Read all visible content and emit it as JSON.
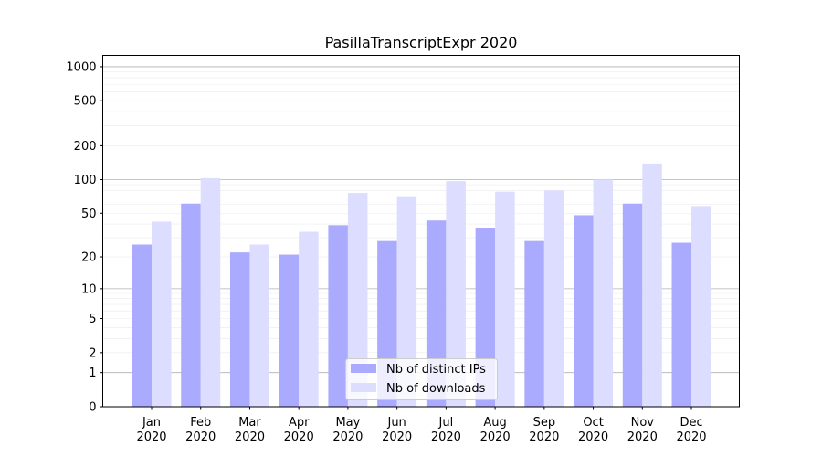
{
  "chart_data": {
    "type": "bar",
    "title": "PasillaTranscriptExpr 2020",
    "xlabel": "",
    "ylabel": "",
    "yscale": "log10(y+1)",
    "ylim": [
      0,
      1350
    ],
    "yticks": [
      0,
      1,
      2,
      5,
      10,
      20,
      50,
      100,
      200,
      500,
      1000
    ],
    "grid": true,
    "legend_position": "lower-center",
    "categories": [
      "Jan\n2020",
      "Feb\n2020",
      "Mar\n2020",
      "Apr\n2020",
      "May\n2020",
      "Jun\n2020",
      "Jul\n2020",
      "Aug\n2020",
      "Sep\n2020",
      "Oct\n2020",
      "Nov\n2020",
      "Dec\n2020"
    ],
    "series": [
      {
        "name": "Nb of distinct IPs",
        "color": "#aaaaff",
        "values": [
          26,
          61,
          22,
          21,
          39,
          28,
          43,
          37,
          28,
          48,
          61,
          27
        ]
      },
      {
        "name": "Nb of downloads",
        "color": "#ddddff",
        "values": [
          42,
          103,
          26,
          34,
          76,
          71,
          97,
          78,
          80,
          100,
          139,
          58
        ]
      }
    ]
  }
}
